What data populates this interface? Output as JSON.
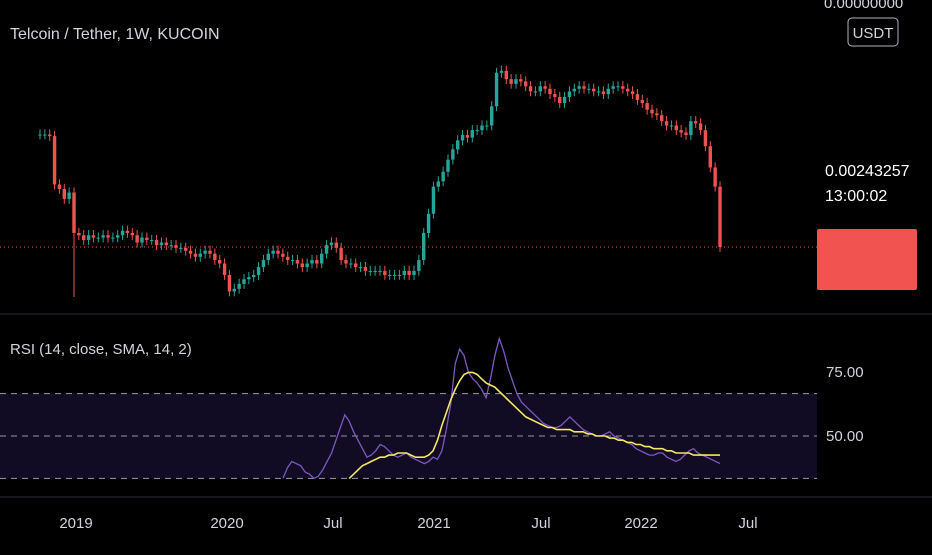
{
  "header": {
    "symbol_title": "Telcoin / Tether, 1W, KUCOIN",
    "currency_badge": "USDT",
    "top_price_label": "0.00000000"
  },
  "price_badge": {
    "value": "0.00243257",
    "countdown": "13:00:02",
    "color": "#f05350"
  },
  "rsi_panel": {
    "title": "RSI (14, close, SMA, 14, 2)",
    "levels": [
      "75.00",
      "50.00"
    ]
  },
  "time_axis": {
    "labels": [
      "2019",
      "2020",
      "Jul",
      "2021",
      "Jul",
      "2022",
      "Jul"
    ]
  },
  "colors": {
    "background": "#000000",
    "up_candle": "#26a69a",
    "down_candle": "#ef5350",
    "rsi_line": "#7e57c2",
    "rsi_ma_line": "#f5e663",
    "rsi_band": "#120b24",
    "separator": "#2a2e39",
    "axis_text": "#d1d4dc"
  },
  "chart_data": [
    {
      "type": "candlestick",
      "close_series": [
        0.0131,
        0.0131,
        0.0128,
        0.0062,
        0.0058,
        0.005,
        0.0055,
        0.003,
        0.0029,
        0.0027,
        0.0029,
        0.0028,
        0.0028,
        0.0029,
        0.0028,
        0.0028,
        0.0029,
        0.0031,
        0.003,
        0.0029,
        0.0026,
        0.0028,
        0.0027,
        0.0027,
        0.0025,
        0.0026,
        0.0025,
        0.0025,
        0.0024,
        0.0024,
        0.0023,
        0.0022,
        0.0021,
        0.0022,
        0.0023,
        0.0022,
        0.002,
        0.0019,
        0.0016,
        0.00125,
        0.0013,
        0.0014,
        0.0015,
        0.00155,
        0.0016,
        0.0018,
        0.002,
        0.0022,
        0.0023,
        0.0022,
        0.0021,
        0.002,
        0.002,
        0.0019,
        0.0018,
        0.0019,
        0.002,
        0.0019,
        0.0022,
        0.0025,
        0.0026,
        0.0024,
        0.002,
        0.0019,
        0.0019,
        0.0018,
        0.0018,
        0.0017,
        0.0017,
        0.0017,
        0.0017,
        0.0016,
        0.0016,
        0.0016,
        0.0016,
        0.0017,
        0.0016,
        0.0017,
        0.002,
        0.003,
        0.004,
        0.006,
        0.0065,
        0.0075,
        0.009,
        0.0105,
        0.012,
        0.013,
        0.0125,
        0.014,
        0.014,
        0.015,
        0.015,
        0.02,
        0.033,
        0.034,
        0.03,
        0.028,
        0.03,
        0.029,
        0.027,
        0.025,
        0.025,
        0.027,
        0.026,
        0.024,
        0.023,
        0.021,
        0.023,
        0.025,
        0.026,
        0.027,
        0.026,
        0.026,
        0.025,
        0.025,
        0.024,
        0.026,
        0.027,
        0.027,
        0.026,
        0.025,
        0.024,
        0.022,
        0.021,
        0.019,
        0.018,
        0.0175,
        0.016,
        0.015,
        0.015,
        0.014,
        0.0135,
        0.013,
        0.016,
        0.0155,
        0.014,
        0.011,
        0.008,
        0.006,
        0.00243257
      ],
      "last_value": 0.00243257,
      "period": "1W"
    },
    {
      "type": "line",
      "title": "RSI (14, close, SMA, 14, 2)",
      "y_ticks": [
        75,
        50
      ],
      "band": [
        30,
        70
      ],
      "series": [
        {
          "values": [
            30,
            35,
            38,
            37,
            36,
            33,
            32,
            30,
            31,
            34,
            38,
            42,
            48,
            54,
            60,
            57,
            52,
            48,
            44,
            40,
            41,
            43,
            46,
            45,
            43,
            41,
            40,
            41,
            42,
            40,
            39,
            38,
            37,
            38,
            40,
            39,
            43,
            53,
            65,
            84,
            91,
            88,
            80,
            77,
            75,
            72,
            68,
            77,
            88,
            96,
            90,
            82,
            76,
            70,
            66,
            64,
            62,
            60,
            58,
            56,
            55,
            54,
            54,
            55,
            57,
            59,
            57,
            55,
            53,
            52,
            51,
            50,
            50,
            51,
            52,
            50,
            49,
            48,
            47,
            46,
            44,
            43,
            42,
            41,
            41,
            42,
            42,
            40,
            39,
            38,
            39,
            41,
            43,
            44,
            42,
            41,
            40,
            39,
            38,
            37
          ]
        },
        {
          "values": [
            null,
            null,
            null,
            null,
            null,
            null,
            null,
            null,
            null,
            null,
            null,
            null,
            null,
            null,
            null,
            30,
            32,
            34,
            36,
            37,
            38,
            39,
            40,
            40,
            41,
            41,
            42,
            42,
            42,
            41,
            40,
            40,
            40,
            41,
            43,
            48,
            55,
            61,
            67,
            72,
            76,
            79,
            80,
            80,
            79,
            77,
            75,
            74,
            73,
            71,
            69,
            67,
            65,
            63,
            61,
            59,
            58,
            57,
            56,
            55,
            54,
            54,
            53,
            53,
            53,
            53,
            52,
            52,
            52,
            51,
            51,
            50,
            50,
            50,
            49,
            49,
            48,
            48,
            47,
            47,
            46,
            46,
            45,
            45,
            44,
            44,
            44,
            43,
            43,
            42,
            42,
            42,
            42,
            41,
            41,
            41,
            41,
            41,
            41,
            41
          ]
        }
      ]
    }
  ]
}
